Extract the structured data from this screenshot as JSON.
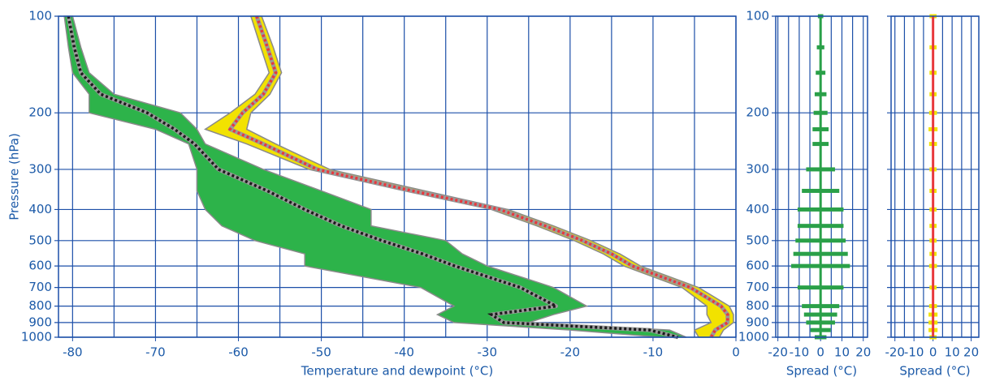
{
  "chart_data": [
    {
      "type": "line",
      "x_label": "Temperature and dewpoint (°C)",
      "y_label": "Pressure (hPa)",
      "y": [
        100,
        125,
        150,
        175,
        200,
        225,
        250,
        300,
        350,
        400,
        450,
        500,
        550,
        600,
        700,
        800,
        850,
        900,
        950,
        1000
      ],
      "bands": [
        {
          "color": "#2db34a",
          "edge": "#8a8a8a",
          "low": [
            -81,
            -80.5,
            -80,
            -78,
            -78,
            -70,
            -66,
            -65,
            -65,
            -64,
            -62,
            -58,
            -52,
            -52,
            -38,
            -34,
            -36,
            -34,
            -20,
            -9
          ],
          "high": [
            -80,
            -79,
            -78,
            -75,
            -67,
            -65,
            -64,
            -57,
            -50,
            -44,
            -44,
            -35,
            -33,
            -30,
            -22,
            -18,
            -22,
            -25,
            -8,
            -6
          ]
        },
        {
          "color": "#f2e200",
          "edge": "#8a8a8a",
          "low": [
            -58.5,
            -57.3,
            -56.3,
            -58,
            -61,
            -64,
            -59,
            -51.5,
            -40,
            -29.5,
            -24,
            -19.5,
            -16,
            -13.5,
            -6.5,
            -3.5,
            -3.5,
            -3,
            -5,
            -4.5
          ],
          "high": [
            -57.2,
            -55.8,
            -54.8,
            -56.2,
            -58.5,
            -59,
            -55.5,
            -49,
            -37.5,
            -27.5,
            -22,
            -17.5,
            -14,
            -11.5,
            -4.5,
            -0.8,
            -0.3,
            -0.3,
            -1.5,
            -2
          ]
        }
      ],
      "series": [
        {
          "color": "#e8383d",
          "values": [
            -57.8,
            -56.5,
            -55.5,
            -57,
            -59.5,
            -61,
            -57,
            -50.5,
            -39,
            -28.5,
            -23,
            -18.5,
            -15,
            -12.5,
            -5.5,
            -1.8,
            -1,
            -1,
            -2.5,
            -3
          ]
        },
        {
          "color": "#1a1a1a",
          "values": [
            -80.5,
            -79.8,
            -79,
            -76.6,
            -71,
            -67.7,
            -65.3,
            -62.4,
            -56.5,
            -52,
            -47.6,
            -42.7,
            -37.8,
            -33.9,
            -26,
            -21.7,
            -29.5,
            -28,
            -10.4,
            -7
          ]
        }
      ],
      "xlim": [
        -81.7,
        0
      ],
      "xticks": [
        -80,
        -70,
        -60,
        -50,
        -40,
        -30,
        -20,
        -10,
        0
      ],
      "minor_xticks": [
        -75,
        -65,
        -55,
        -45,
        -35,
        -25,
        -15,
        -5
      ],
      "ylim": [
        1000,
        100
      ],
      "yticks": [
        100,
        200,
        300,
        400,
        500,
        600,
        700,
        800,
        900,
        1000
      ],
      "log_y": true,
      "grid_color": "#1c4fa8",
      "show_ytick_labels": true
    },
    {
      "type": "errorbar",
      "x_label": "Spread (°C)",
      "y": [
        100,
        125,
        150,
        175,
        200,
        225,
        250,
        300,
        350,
        400,
        450,
        500,
        550,
        600,
        700,
        800,
        850,
        900,
        950,
        1000
      ],
      "series": [
        {
          "color": "#2aa048",
          "line_color": "#2aa048",
          "values": [
            0,
            0,
            0,
            0,
            0,
            0,
            0,
            0,
            0,
            0,
            0,
            0,
            0,
            0,
            0,
            0,
            0,
            0,
            0,
            0
          ],
          "errors": [
            0.5,
            1,
            1.5,
            2,
            2.5,
            3,
            3,
            6,
            8,
            10,
            10,
            11,
            12,
            13,
            10,
            8,
            7,
            6,
            4,
            2
          ]
        }
      ],
      "xlim": [
        -21,
        22
      ],
      "xticks": [
        -20,
        -10,
        0,
        10,
        20
      ],
      "minor_xticks": [
        -15,
        -5,
        5,
        15
      ],
      "ylim": [
        1000,
        100
      ],
      "yticks": [
        100,
        200,
        300,
        400,
        500,
        600,
        700,
        800,
        900,
        1000
      ],
      "log_y": true,
      "grid_color": "#1c4fa8",
      "show_ytick_labels": true
    },
    {
      "type": "errorbar",
      "x_label": "Spread (°C)",
      "y": [
        100,
        125,
        150,
        175,
        200,
        225,
        250,
        300,
        350,
        400,
        450,
        500,
        550,
        600,
        700,
        800,
        850,
        900,
        950,
        1000
      ],
      "series": [
        {
          "color": "#f2e200",
          "line_color": "#e8383d",
          "values": [
            0,
            0,
            0,
            0,
            0,
            0,
            0,
            0,
            0,
            0,
            0,
            0,
            0,
            0,
            0,
            0,
            0,
            0,
            0,
            0
          ],
          "errors": [
            1,
            1,
            1,
            1,
            1.2,
            1.5,
            1.2,
            1,
            1,
            1,
            1,
            1,
            1,
            1.2,
            1,
            1.2,
            1.5,
            1.5,
            1.5,
            1
          ]
        }
      ],
      "xlim": [
        -22,
        24
      ],
      "xticks": [
        -20,
        -10,
        0,
        10,
        20
      ],
      "minor_xticks": [
        -15,
        -5,
        5,
        15
      ],
      "ylim": [
        1000,
        100
      ],
      "yticks": [
        100,
        200,
        300,
        400,
        500,
        600,
        700,
        800,
        900,
        1000
      ],
      "log_y": true,
      "grid_color": "#1c4fa8",
      "show_ytick_labels": false
    }
  ]
}
